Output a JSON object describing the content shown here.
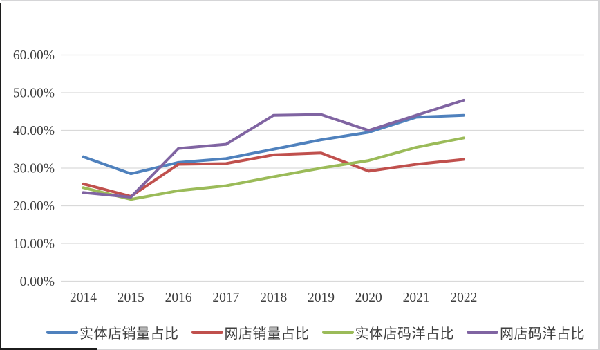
{
  "chart_data": {
    "type": "line",
    "title": "",
    "xlabel": "",
    "ylabel": "",
    "categories": [
      "2014",
      "2015",
      "2016",
      "2017",
      "2018",
      "2019",
      "2020",
      "2021",
      "2022"
    ],
    "series": [
      {
        "name": "实体店销量占比",
        "color": "#4F81BD",
        "values": [
          33,
          28.5,
          31.5,
          32.5,
          35,
          37.5,
          39.5,
          43.5,
          44
        ]
      },
      {
        "name": "网店销量占比",
        "color": "#C0504D",
        "values": [
          25.8,
          22.5,
          31,
          31.2,
          33.5,
          34,
          29.2,
          31,
          32.3
        ]
      },
      {
        "name": "实体店码洋占比",
        "color": "#9BBB59",
        "values": [
          24.8,
          21.7,
          24,
          25.3,
          27.7,
          30,
          32,
          35.5,
          38
        ]
      },
      {
        "name": "网店码洋占比",
        "color": "#8064A2",
        "values": [
          23.5,
          22.3,
          35.2,
          36.3,
          44,
          44.2,
          40,
          44,
          48
        ]
      }
    ],
    "ylim": [
      0,
      60
    ],
    "ytick_labels": [
      "0.00%",
      "10.00%",
      "20.00%",
      "30.00%",
      "40.00%",
      "50.00%",
      "60.00%"
    ],
    "grid": true,
    "legend_position": "bottom"
  },
  "colors": {
    "gridline": "#D9D9D9",
    "axis_text": "#3F3F3F",
    "background": "#FFFFFF",
    "frame_border": "#D5D5D7",
    "cell_border": "#1C1C1C"
  }
}
